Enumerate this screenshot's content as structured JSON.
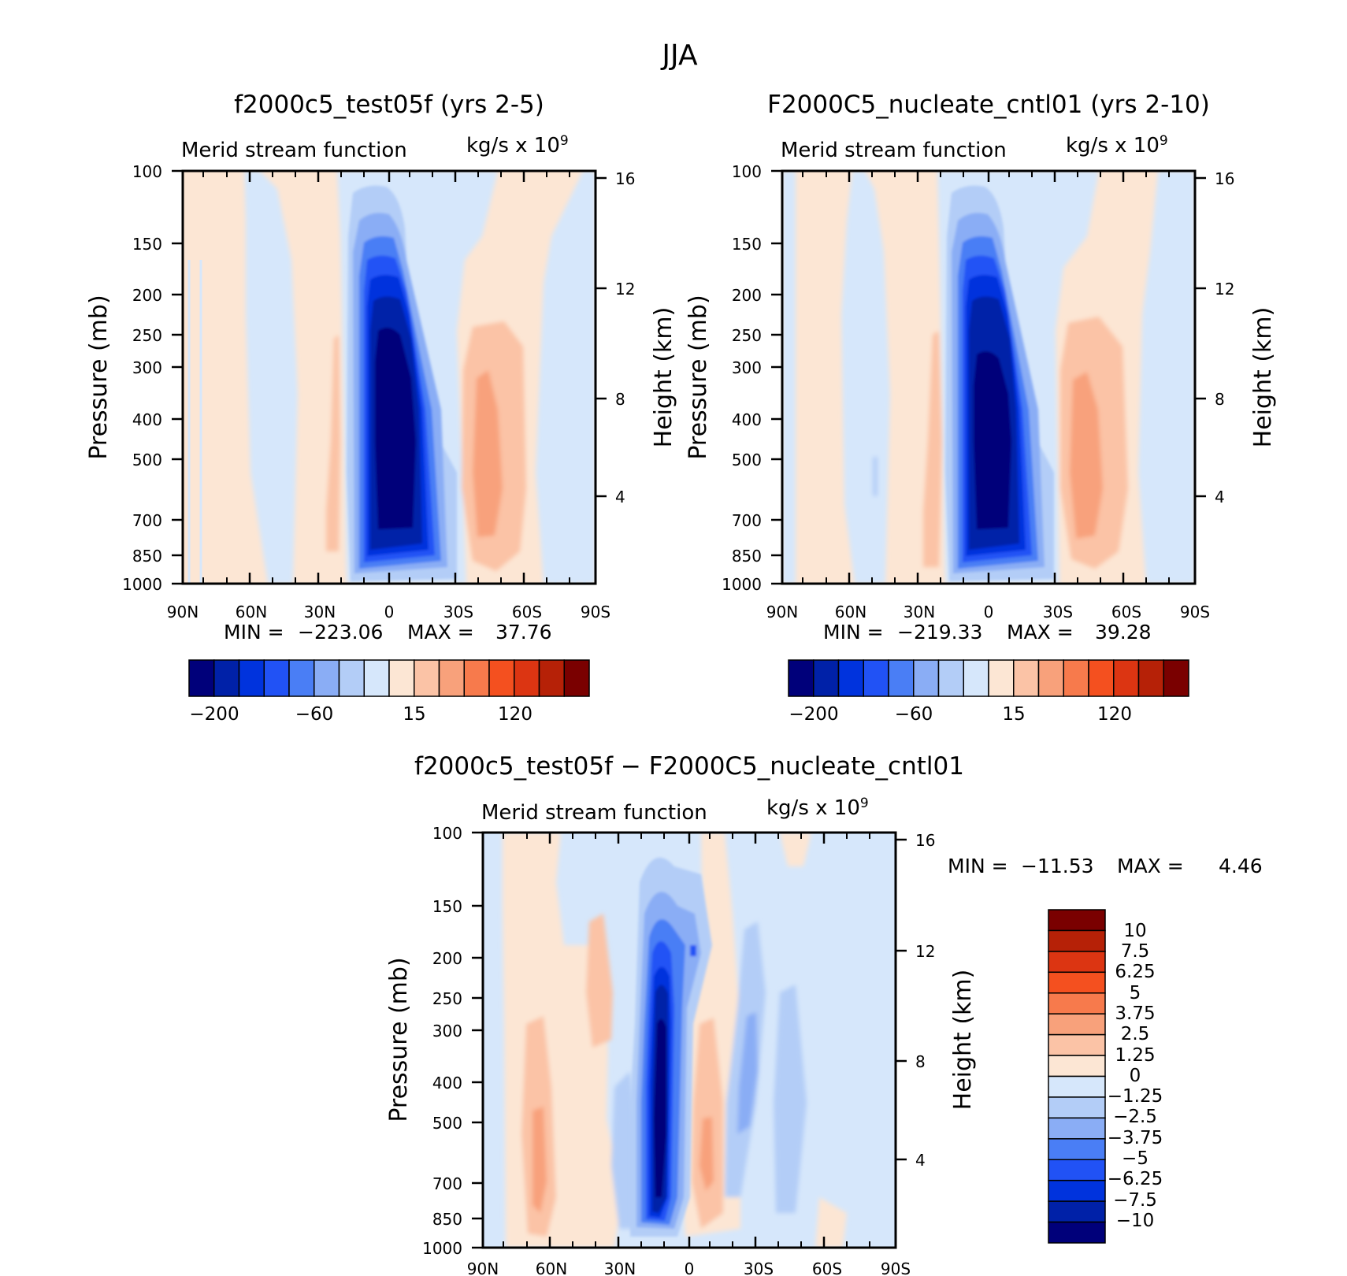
{
  "figure_title": "JJA",
  "chart_data": [
    {
      "type": "contour",
      "id": "model",
      "title": "f2000c5_test05f (yrs 2-5)",
      "subtitle_left": "Merid stream function",
      "units": "kg/s x 10",
      "units_exp": "9",
      "ylabel": "Pressure (mb)",
      "ylabel_right": "Height (km)",
      "x_ticks": [
        "90N",
        "60N",
        "30N",
        "0",
        "30S",
        "60S",
        "90S"
      ],
      "y_ticks": [
        "100",
        "150",
        "200",
        "250",
        "300",
        "400",
        "500",
        "700",
        "850",
        "1000"
      ],
      "height_ticks": [
        "16",
        "12",
        "8",
        "4"
      ],
      "xlim": [
        90,
        -90
      ],
      "ylim": [
        1000,
        100
      ],
      "stats": {
        "min_label": "MIN =",
        "min": "−223.06",
        "max_label": "MAX =",
        "max": "37.76"
      },
      "colorbar_ticks": [
        "−200",
        "−60",
        "15",
        "120"
      ],
      "features": [
        {
          "kind": "neg",
          "center_lat": 0,
          "center_p": 450,
          "extreme": -223.06
        },
        {
          "kind": "pos",
          "center_lat": -42,
          "center_p": 450,
          "extreme": 37.76
        }
      ]
    },
    {
      "type": "contour",
      "id": "control",
      "title": "F2000C5_nucleate_cntl01 (yrs 2-10)",
      "subtitle_left": "Merid stream function",
      "units": "kg/s x 10",
      "units_exp": "9",
      "ylabel": "Pressure (mb)",
      "ylabel_right": "Height (km)",
      "x_ticks": [
        "90N",
        "60N",
        "30N",
        "0",
        "30S",
        "60S",
        "90S"
      ],
      "y_ticks": [
        "100",
        "150",
        "200",
        "250",
        "300",
        "400",
        "500",
        "700",
        "850",
        "1000"
      ],
      "height_ticks": [
        "16",
        "12",
        "8",
        "4"
      ],
      "xlim": [
        90,
        -90
      ],
      "ylim": [
        1000,
        100
      ],
      "stats": {
        "min_label": "MIN =",
        "min": "−219.33",
        "max_label": "MAX =",
        "max": "39.28"
      },
      "colorbar_ticks": [
        "−200",
        "−60",
        "15",
        "120"
      ],
      "features": [
        {
          "kind": "neg",
          "center_lat": 0,
          "center_p": 450,
          "extreme": -219.33
        },
        {
          "kind": "pos",
          "center_lat": -42,
          "center_p": 450,
          "extreme": 39.28
        }
      ]
    },
    {
      "type": "contour",
      "id": "diff",
      "title": "f2000c5_test05f − F2000C5_nucleate_cntl01",
      "subtitle_left": "Merid stream function",
      "units": "kg/s x 10",
      "units_exp": "9",
      "ylabel": "Pressure (mb)",
      "ylabel_right": "Height (km)",
      "x_ticks": [
        "90N",
        "60N",
        "30N",
        "0",
        "30S",
        "60S",
        "90S"
      ],
      "y_ticks": [
        "100",
        "150",
        "200",
        "250",
        "300",
        "400",
        "500",
        "700",
        "850",
        "1000"
      ],
      "height_ticks": [
        "16",
        "12",
        "8",
        "4"
      ],
      "xlim": [
        90,
        -90
      ],
      "ylim": [
        1000,
        100
      ],
      "stats": {
        "min_label": "MIN =",
        "min": "−11.53",
        "max_label": "MAX =",
        "max": "4.46"
      },
      "colorbar_labels": [
        "10",
        "7.5",
        "6.25",
        "5",
        "3.75",
        "2.5",
        "1.25",
        "0",
        "−1.25",
        "−2.5",
        "−3.75",
        "−5",
        "−6.25",
        "−7.5",
        "−10"
      ],
      "features": [
        {
          "kind": "neg",
          "center_lat": 13,
          "center_p": 450,
          "extreme": -11.53
        },
        {
          "kind": "pos",
          "center_lat": -8,
          "center_p": 600,
          "extreme": 4.46
        },
        {
          "kind": "pos",
          "center_lat": 68,
          "center_p": 600,
          "extreme": 3
        },
        {
          "kind": "neg",
          "center_lat": -30,
          "center_p": 400,
          "extreme": -5
        }
      ]
    }
  ],
  "colors": {
    "full_colorbar": [
      "#00007a",
      "#0021a8",
      "#0033dd",
      "#2152f5",
      "#4a7ef5",
      "#8aadf5",
      "#b3cdf7",
      "#d6e7fb",
      "#fce6d4",
      "#fbc3a6",
      "#f8a17b",
      "#f77a4c",
      "#f4501f",
      "#dc3512",
      "#b62107",
      "#7a0000"
    ],
    "diff_colorbar": [
      "#7a0000",
      "#b62107",
      "#dc3512",
      "#f4501f",
      "#f77a4c",
      "#f8a17b",
      "#fbc3a6",
      "#fce6d4",
      "#d6e7fb",
      "#b3cdf7",
      "#8aadf5",
      "#4a7ef5",
      "#2152f5",
      "#0033dd",
      "#0021a8",
      "#00007a"
    ]
  }
}
